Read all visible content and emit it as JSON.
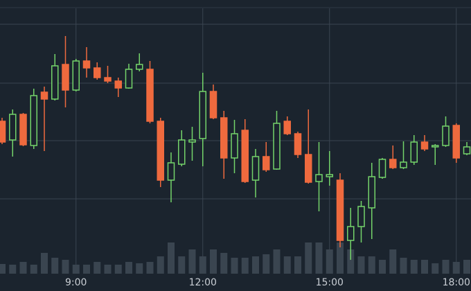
{
  "chart_data": {
    "type": "candlestick",
    "categories": [
      null,
      null,
      null,
      null,
      null,
      null,
      null,
      "9:00",
      null,
      null,
      null,
      null,
      null,
      null,
      null,
      null,
      null,
      null,
      null,
      "12:00",
      null,
      null,
      null,
      null,
      null,
      null,
      null,
      null,
      null,
      null,
      null,
      "15:00",
      null,
      null,
      null,
      null,
      null,
      null,
      null,
      null,
      null,
      null,
      null,
      "18:00",
      null
    ],
    "open": [
      245,
      218,
      255,
      210,
      287,
      277,
      327,
      290,
      332,
      322,
      308,
      303,
      293,
      320,
      320,
      245,
      160,
      183,
      215,
      220,
      288,
      250,
      192,
      232,
      160,
      194,
      176,
      245,
      227,
      197,
      158,
      165,
      160,
      73,
      93,
      120,
      164,
      190,
      178,
      186,
      215,
      208,
      210,
      239,
      198
    ],
    "high": [
      250,
      262,
      257,
      292,
      295,
      342,
      368,
      335,
      352,
      330,
      325,
      308,
      328,
      343,
      332,
      250,
      200,
      232,
      237,
      315,
      298,
      260,
      247,
      248,
      205,
      215,
      260,
      252,
      230,
      262,
      215,
      202,
      170,
      120,
      130,
      185,
      192,
      210,
      216,
      225,
      225,
      212,
      252,
      242,
      215
    ],
    "low": [
      212,
      194,
      209,
      205,
      202,
      275,
      265,
      288,
      308,
      305,
      300,
      280,
      292,
      317,
      242,
      150,
      128,
      180,
      188,
      180,
      248,
      162,
      170,
      156,
      135,
      172,
      175,
      225,
      192,
      155,
      115,
      152,
      63,
      45,
      70,
      75,
      162,
      176,
      176,
      182,
      202,
      182,
      208,
      185,
      196
    ],
    "close": [
      215,
      255,
      211,
      282,
      277,
      325,
      290,
      332,
      322,
      308,
      303,
      293,
      320,
      327,
      245,
      160,
      185,
      218,
      218,
      288,
      250,
      192,
      227,
      158,
      194,
      175,
      242,
      227,
      197,
      157,
      168,
      168,
      73,
      93,
      122,
      165,
      190,
      178,
      186,
      215,
      205,
      210,
      238,
      192,
      208
    ],
    "volume": [
      14,
      13,
      17,
      13,
      30,
      23,
      20,
      13,
      13,
      17,
      13,
      13,
      17,
      15,
      17,
      25,
      45,
      25,
      35,
      25,
      35,
      30,
      23,
      23,
      25,
      28,
      35,
      25,
      25,
      45,
      45,
      35,
      45,
      35,
      25,
      25,
      20,
      35,
      23,
      20,
      20,
      15,
      20,
      17,
      20
    ],
    "up_color": "#74d46a",
    "down_color": "#ef6a3e",
    "volume_color": "#3a4550",
    "ylim": [
      0,
      420
    ],
    "volume_lim": [
      0,
      100
    ],
    "grid": true
  }
}
